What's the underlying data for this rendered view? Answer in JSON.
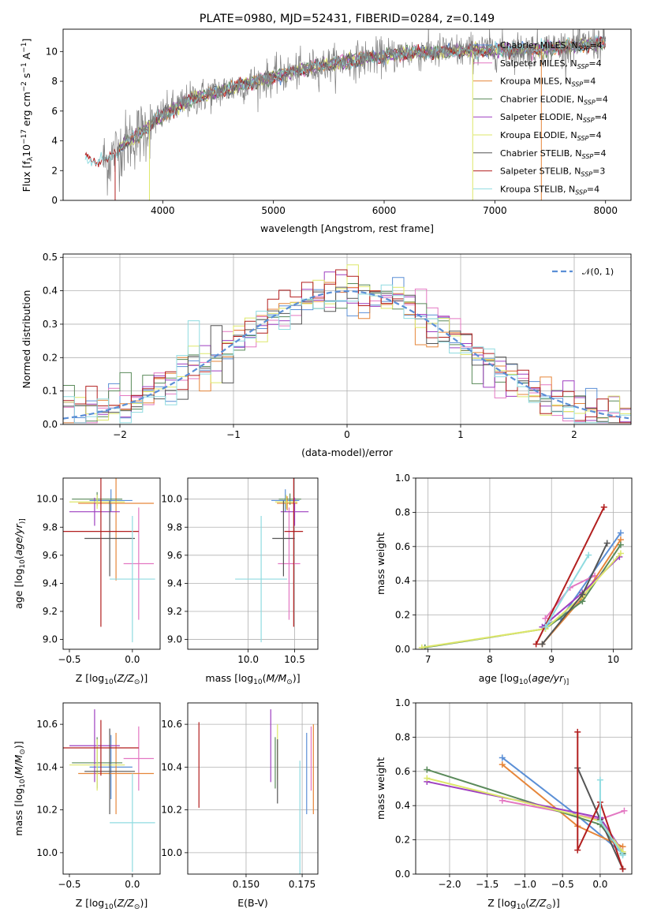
{
  "colors": {
    "chabrier_miles": "#5b8fd6",
    "salpeter_miles": "#e377c2",
    "kroupa_miles": "#e6863a",
    "chabrier_elodie": "#5a8a5a",
    "salpeter_elodie": "#9e3fc0",
    "kroupa_elodie": "#dde76a",
    "chabrier_stelib": "#555555",
    "salpeter_stelib": "#b21f1f",
    "kroupa_stelib": "#8fdbe0",
    "spectrum": "#808080",
    "gaussian": "#5b8fd6",
    "grid": "#b0b0b0"
  },
  "chart_data": [
    {
      "id": "spectrum",
      "type": "line",
      "title": "PLATE=0980, MJD=52431, FIBERID=0284, z=0.149",
      "xlabel": "wavelength [Angstrom, rest frame]",
      "ylabel_parts": [
        "Flux [f",
        "λ",
        "10",
        "−17",
        " erg cm",
        "−2",
        " s",
        "−1",
        " A",
        "−1",
        "]"
      ],
      "xlim": [
        3100,
        8230
      ],
      "ylim": [
        0,
        11.5
      ],
      "xticks": [
        4000,
        5000,
        6000,
        7000,
        8000
      ],
      "yticks": [
        0,
        2,
        4,
        6,
        8,
        10
      ],
      "grid": false,
      "legend_position": "top-right",
      "continuum_knots": [
        [
          3300,
          2.9
        ],
        [
          3400,
          2.8
        ],
        [
          3500,
          2.6
        ],
        [
          3650,
          3.8
        ],
        [
          3800,
          4.5
        ],
        [
          3950,
          5.5
        ],
        [
          4100,
          6.2
        ],
        [
          4300,
          6.9
        ],
        [
          4600,
          7.5
        ],
        [
          5000,
          8.3
        ],
        [
          5400,
          9.0
        ],
        [
          5800,
          9.5
        ],
        [
          6200,
          9.9
        ],
        [
          6600,
          10.0
        ],
        [
          7000,
          10.1
        ],
        [
          7500,
          10.2
        ],
        [
          8000,
          10.6
        ]
      ],
      "series": [
        {
          "name": "Chabrier MILES",
          "nssp": "4",
          "color_key": "chabrier_miles"
        },
        {
          "name": "Salpeter MILES",
          "nssp": "4",
          "color_key": "salpeter_miles"
        },
        {
          "name": "Kroupa MILES",
          "nssp": "4",
          "color_key": "kroupa_miles"
        },
        {
          "name": "Chabrier ELODIE",
          "nssp": "4",
          "color_key": "chabrier_elodie"
        },
        {
          "name": "Salpeter ELODIE",
          "nssp": "4",
          "color_key": "salpeter_elodie"
        },
        {
          "name": "Kroupa ELODIE",
          "nssp": "4",
          "color_key": "kroupa_elodie"
        },
        {
          "name": "Chabrier STELIB",
          "nssp": "4",
          "color_key": "chabrier_stelib"
        },
        {
          "name": "Salpeter STELIB",
          "nssp": "3",
          "color_key": "salpeter_stelib"
        },
        {
          "name": "Kroupa STELIB",
          "nssp": "4",
          "color_key": "kroupa_stelib"
        }
      ]
    },
    {
      "id": "residuals",
      "type": "step-histogram",
      "xlabel": "(data-model)/error",
      "ylabel": "Normed distribution",
      "xlim": [
        -2.5,
        2.5
      ],
      "ylim": [
        0,
        0.51
      ],
      "xticks": [
        -2,
        -1,
        0,
        1,
        2
      ],
      "xtick_labels": [
        "−2",
        "−1",
        "0",
        "1",
        "2"
      ],
      "yticks": [
        0,
        0.1,
        0.2,
        0.3,
        0.4,
        0.5
      ],
      "ytick_labels": [
        "0.0",
        "0.1",
        "0.2",
        "0.3",
        "0.4",
        "0.5"
      ],
      "grid": true,
      "legend_position": "top-right",
      "legend_label": "𝒩(0, 1)",
      "bin_width": 0.1,
      "bin_start": -2.5,
      "gaussian": {
        "mu": 0,
        "sigma": 1
      }
    },
    {
      "id": "age_vs_z",
      "type": "errorbar",
      "xlabel_parts": [
        "Z [log",
        "10",
        "(",
        "Z/Z",
        "⊙",
        ")]"
      ],
      "ylabel_parts": [
        "age  [log",
        "10",
        "(",
        "age/yr",
        ")]"
      ],
      "xlim": [
        -0.55,
        0.22
      ],
      "ylim": [
        8.93,
        10.15
      ],
      "xticks": [
        -0.5,
        0.0
      ],
      "xtick_labels": [
        "−0.5",
        "0.0"
      ],
      "yticks": [
        9.0,
        9.2,
        9.4,
        9.6,
        9.8,
        10.0
      ],
      "ytick_labels": [
        "9.0",
        "9.2",
        "9.4",
        "9.6",
        "9.8",
        "10.0"
      ],
      "grid": false,
      "points": [
        {
          "c": "chabrier_miles",
          "x": -0.17,
          "xerr": 0.17,
          "y": 9.99,
          "yerr": 0.08
        },
        {
          "c": "salpeter_miles",
          "x": 0.05,
          "xerr": 0.12,
          "y": 9.54,
          "yerr": 0.4
        },
        {
          "c": "kroupa_miles",
          "x": -0.13,
          "xerr": 0.3,
          "y": 9.97,
          "yerr": 0.55
        },
        {
          "c": "chabrier_elodie",
          "x": -0.28,
          "xerr": 0.2,
          "y": 10.0,
          "yerr": 0.05
        },
        {
          "c": "salpeter_elodie",
          "x": -0.3,
          "xerr": 0.2,
          "y": 9.91,
          "yerr": 0.1
        },
        {
          "c": "kroupa_elodie",
          "x": -0.28,
          "xerr": 0.22,
          "y": 9.98,
          "yerr": 0.05
        },
        {
          "c": "chabrier_stelib",
          "x": -0.18,
          "xerr": 0.2,
          "y": 9.72,
          "yerr": 0.27
        },
        {
          "c": "salpeter_stelib",
          "x": -0.25,
          "xerr": 0.3,
          "y": 9.77,
          "yerr": 0.68
        },
        {
          "c": "kroupa_stelib",
          "x": 0.0,
          "xerr": 0.18,
          "y": 9.43,
          "yerr": 0.45
        }
      ]
    },
    {
      "id": "age_vs_mass",
      "type": "errorbar",
      "xlabel_parts": [
        "mass [log",
        "10",
        "(",
        "M/M",
        "⊙",
        ")]"
      ],
      "xlim": [
        9.35,
        10.75
      ],
      "ylim": [
        8.93,
        10.15
      ],
      "xticks": [
        10.0,
        10.5
      ],
      "xtick_labels": [
        "10.0",
        "10.5"
      ],
      "yticks": [
        9.0,
        9.2,
        9.4,
        9.6,
        9.8,
        10.0
      ],
      "ytick_labels": [
        "9.0",
        "9.2",
        "9.4",
        "9.6",
        "9.8",
        "10.0"
      ],
      "grid": true,
      "points": [
        {
          "c": "chabrier_miles",
          "x": 10.4,
          "xerr": 0.15,
          "y": 9.99,
          "yerr": 0.08
        },
        {
          "c": "salpeter_miles",
          "x": 10.44,
          "xerr": 0.12,
          "y": 9.54,
          "yerr": 0.4
        },
        {
          "c": "kroupa_miles",
          "x": 10.42,
          "xerr": 0.11,
          "y": 9.97,
          "yerr": 0.05
        },
        {
          "c": "chabrier_elodie",
          "x": 10.45,
          "xerr": 0.12,
          "y": 10.0,
          "yerr": 0.04
        },
        {
          "c": "salpeter_elodie",
          "x": 10.5,
          "xerr": 0.15,
          "y": 9.91,
          "yerr": 0.1
        },
        {
          "c": "kroupa_elodie",
          "x": 10.41,
          "xerr": 0.12,
          "y": 9.98,
          "yerr": 0.05
        },
        {
          "c": "chabrier_stelib",
          "x": 10.38,
          "xerr": 0.12,
          "y": 9.72,
          "yerr": 0.27
        },
        {
          "c": "salpeter_stelib",
          "x": 10.49,
          "xerr": 0.1,
          "y": 9.77,
          "yerr": 0.68
        },
        {
          "c": "kroupa_stelib",
          "x": 10.14,
          "xerr": 0.28,
          "y": 9.43,
          "yerr": 0.45
        }
      ]
    },
    {
      "id": "weight_vs_age",
      "type": "line",
      "xlabel_parts": [
        "age  [log",
        "10",
        "(",
        "age/yr",
        ")]"
      ],
      "ylabel": "mass weight",
      "xlim": [
        6.8,
        10.3
      ],
      "ylim": [
        0,
        1.0
      ],
      "xticks": [
        7,
        8,
        9,
        10
      ],
      "xtick_labels": [
        "7",
        "8",
        "9",
        "10"
      ],
      "yticks": [
        0,
        0.2,
        0.4,
        0.6,
        0.8,
        1.0
      ],
      "ytick_labels": [
        "0.0",
        "0.2",
        "0.4",
        "0.6",
        "0.8",
        "1.0"
      ],
      "grid": true,
      "series": [
        {
          "c": "chabrier_miles",
          "x": [
            8.9,
            9.15,
            10.12
          ],
          "y": [
            0.14,
            0.18,
            0.68
          ]
        },
        {
          "c": "salpeter_miles",
          "x": [
            8.9,
            9.3,
            9.7
          ],
          "y": [
            0.18,
            0.36,
            0.43
          ]
        },
        {
          "c": "kroupa_miles",
          "x": [
            8.85,
            9.5,
            10.12
          ],
          "y": [
            0.03,
            0.3,
            0.64
          ]
        },
        {
          "c": "chabrier_elodie",
          "x": [
            6.95,
            8.9,
            9.5,
            10.12
          ],
          "y": [
            0.01,
            0.12,
            0.28,
            0.61
          ]
        },
        {
          "c": "salpeter_elodie",
          "x": [
            8.85,
            9.5,
            10.1
          ],
          "y": [
            0.13,
            0.33,
            0.54
          ]
        },
        {
          "c": "kroupa_elodie",
          "x": [
            6.9,
            8.9,
            9.5,
            10.12
          ],
          "y": [
            0.01,
            0.12,
            0.31,
            0.56
          ]
        },
        {
          "c": "chabrier_stelib",
          "x": [
            8.85,
            9.5,
            9.9
          ],
          "y": [
            0.03,
            0.32,
            0.62
          ]
        },
        {
          "c": "salpeter_stelib",
          "x": [
            8.75,
            9.85
          ],
          "y": [
            0.03,
            0.83
          ]
        },
        {
          "c": "kroupa_stelib",
          "x": [
            8.9,
            9.6
          ],
          "y": [
            0.13,
            0.55
          ]
        }
      ]
    },
    {
      "id": "mass_vs_z",
      "type": "errorbar",
      "xlabel_parts": [
        "Z [log",
        "10",
        "(",
        "Z/Z",
        "⊙",
        ")]"
      ],
      "ylabel_parts": [
        "mass [log",
        "10",
        "(",
        "M/M",
        "⊙",
        ")]"
      ],
      "xlim": [
        -0.55,
        0.22
      ],
      "ylim": [
        9.9,
        10.7
      ],
      "xticks": [
        -0.5,
        0.0
      ],
      "xtick_labels": [
        "−0.5",
        "0.0"
      ],
      "yticks": [
        10.0,
        10.2,
        10.4,
        10.6
      ],
      "ytick_labels": [
        "10.0",
        "10.2",
        "10.4",
        "10.6"
      ],
      "grid": false,
      "points": [
        {
          "c": "chabrier_miles",
          "x": -0.17,
          "xerr": 0.17,
          "y": 10.4,
          "yerr": 0.15
        },
        {
          "c": "salpeter_miles",
          "x": 0.05,
          "xerr": 0.12,
          "y": 10.44,
          "yerr": 0.15
        },
        {
          "c": "kroupa_miles",
          "x": -0.13,
          "xerr": 0.3,
          "y": 10.37,
          "yerr": 0.19
        },
        {
          "c": "chabrier_elodie",
          "x": -0.28,
          "xerr": 0.2,
          "y": 10.42,
          "yerr": 0.12
        },
        {
          "c": "salpeter_elodie",
          "x": -0.3,
          "xerr": 0.2,
          "y": 10.5,
          "yerr": 0.17
        },
        {
          "c": "kroupa_elodie",
          "x": -0.28,
          "xerr": 0.22,
          "y": 10.41,
          "yerr": 0.12
        },
        {
          "c": "chabrier_stelib",
          "x": -0.18,
          "xerr": 0.2,
          "y": 10.38,
          "yerr": 0.2
        },
        {
          "c": "salpeter_stelib",
          "x": -0.25,
          "xerr": 0.3,
          "y": 10.49,
          "yerr": 0.13
        },
        {
          "c": "kroupa_stelib",
          "x": 0.0,
          "xerr": 0.18,
          "y": 10.14,
          "yerr": 0.23
        }
      ]
    },
    {
      "id": "mass_vs_ebv",
      "type": "errorbar",
      "xlabel": "E(B-V)",
      "xlim": [
        0.124,
        0.182
      ],
      "ylim": [
        9.9,
        10.7
      ],
      "xticks": [
        0.15,
        0.175
      ],
      "xtick_labels": [
        "0.150",
        "0.175"
      ],
      "yticks": [
        10.0,
        10.2,
        10.4,
        10.6
      ],
      "ytick_labels": [
        "10.0",
        "10.2",
        "10.4",
        "10.6"
      ],
      "grid": true,
      "points": [
        {
          "c": "chabrier_miles",
          "x": 0.177,
          "y": 10.37,
          "yerr": 0.19
        },
        {
          "c": "salpeter_miles",
          "x": 0.179,
          "y": 10.44,
          "yerr": 0.15
        },
        {
          "c": "kroupa_miles",
          "x": 0.18,
          "y": 10.39,
          "yerr": 0.21
        },
        {
          "c": "chabrier_elodie",
          "x": 0.163,
          "y": 10.42,
          "yerr": 0.12
        },
        {
          "c": "salpeter_elodie",
          "x": 0.161,
          "y": 10.5,
          "yerr": 0.17
        },
        {
          "c": "kroupa_elodie",
          "x": 0.164,
          "y": 10.47,
          "yerr": 0.13
        },
        {
          "c": "chabrier_stelib",
          "x": 0.164,
          "y": 10.38,
          "yerr": 0.15
        },
        {
          "c": "salpeter_stelib",
          "x": 0.129,
          "y": 10.41,
          "yerr": 0.2
        },
        {
          "c": "kroupa_stelib",
          "x": 0.174,
          "y": 10.14,
          "yerr": 0.29
        }
      ]
    },
    {
      "id": "weight_vs_z",
      "type": "line",
      "xlabel_parts": [
        "Z [log",
        "10",
        "(",
        "Z/Z",
        "⊙",
        ")]"
      ],
      "ylabel": "mass weight",
      "xlim": [
        -2.45,
        0.42
      ],
      "ylim": [
        0,
        1.0
      ],
      "xticks": [
        -2.0,
        -1.5,
        -1.0,
        -0.5,
        0.0
      ],
      "xtick_labels": [
        "−2.0",
        "−1.5",
        "−1.0",
        "−0.5",
        "0.0"
      ],
      "yticks": [
        0,
        0.2,
        0.4,
        0.6,
        0.8,
        1.0
      ],
      "ytick_labels": [
        "0.0",
        "0.2",
        "0.4",
        "0.6",
        "0.8",
        "1.0"
      ],
      "grid": true,
      "series": [
        {
          "c": "chabrier_miles",
          "x": [
            -1.3,
            -0.3,
            0.3
          ],
          "y": [
            0.68,
            0.34,
            0.12
          ]
        },
        {
          "c": "salpeter_miles",
          "x": [
            -1.3,
            0.0,
            0.32
          ],
          "y": [
            0.43,
            0.32,
            0.37
          ]
        },
        {
          "c": "kroupa_miles",
          "x": [
            -1.3,
            -0.3,
            0.3
          ],
          "y": [
            0.64,
            0.28,
            0.16
          ]
        },
        {
          "c": "chabrier_elodie",
          "x": [
            -2.3,
            0.0,
            0.3
          ],
          "y": [
            0.61,
            0.29,
            0.12
          ]
        },
        {
          "c": "salpeter_elodie",
          "x": [
            -2.3,
            0.0,
            0.3
          ],
          "y": [
            0.54,
            0.33,
            0.13
          ]
        },
        {
          "c": "kroupa_elodie",
          "x": [
            -2.3,
            0.0,
            0.3
          ],
          "y": [
            0.56,
            0.31,
            0.13
          ]
        },
        {
          "c": "chabrier_stelib",
          "x": [
            -0.3,
            0.0,
            0.3
          ],
          "y": [
            0.62,
            0.32,
            0.03
          ]
        },
        {
          "c": "salpeter_stelib",
          "x": [
            -0.3,
            -0.3,
            0.0,
            0.3
          ],
          "y": [
            0.83,
            0.14,
            0.42,
            0.03
          ]
        },
        {
          "c": "kroupa_stelib",
          "x": [
            0.0,
            0.0,
            0.3
          ],
          "y": [
            0.55,
            0.31,
            0.11
          ]
        }
      ]
    }
  ]
}
